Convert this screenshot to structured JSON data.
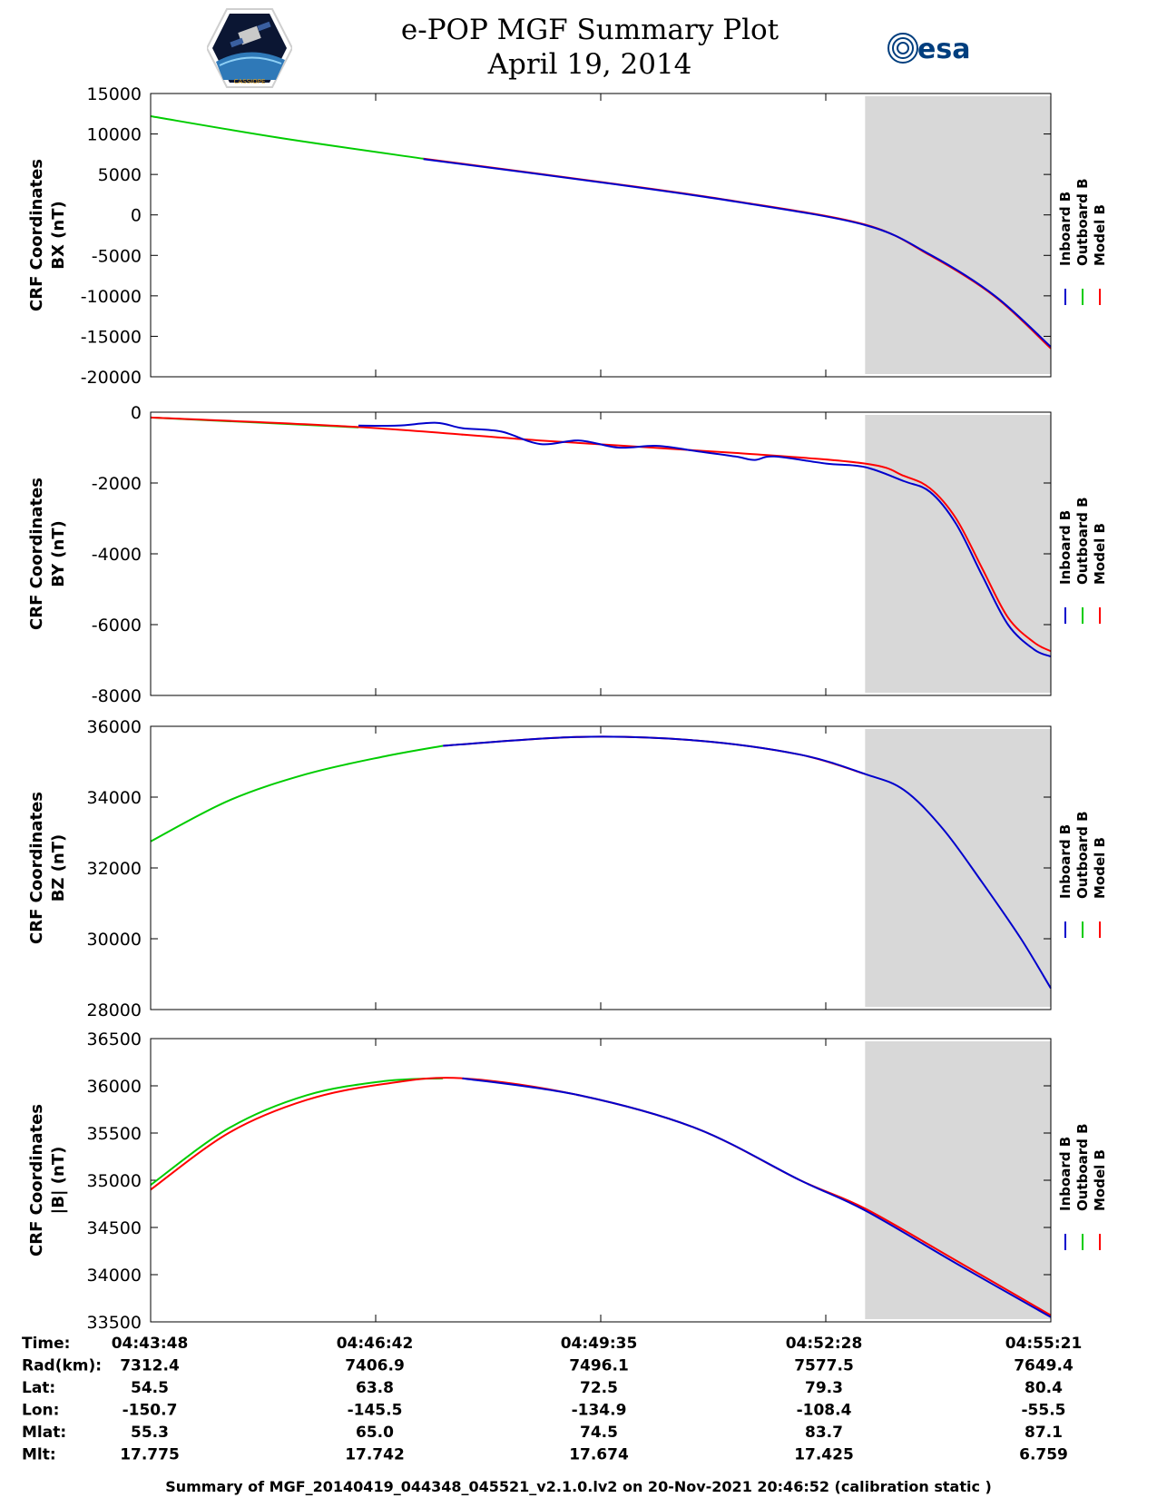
{
  "header": {
    "title_line1": "e-POP MGF Summary Plot",
    "title_line2": "April 19, 2014",
    "logo_left_text": "CASSIOPE",
    "logo_right_text": "esa"
  },
  "colors": {
    "inboard": "#0000cc",
    "outboard": "#00cc00",
    "model": "#ff0000",
    "shade": "#d8d8d8"
  },
  "legend": [
    "Inboard B",
    "Outboard B",
    "Model B"
  ],
  "chart_data": {
    "type": "line",
    "x_tick_labels": [
      "04:43:48",
      "04:46:42",
      "04:49:35",
      "04:52:28",
      "04:55:21"
    ],
    "x_range_min": [
      0,
      693
    ],
    "shaded_region_min": [
      550,
      693
    ],
    "panels": [
      {
        "ylabel1": "CRF Coordinates",
        "ylabel2": "BX (nT)",
        "ylim": [
          -20000,
          15000
        ],
        "yticks": [
          15000,
          10000,
          5000,
          0,
          -5000,
          -10000,
          -15000,
          -20000
        ],
        "series": [
          {
            "name": "Outboard B",
            "color": "#00cc00",
            "x_min": [
              0,
              100,
              210
            ],
            "y": [
              12200,
              9500,
              6950
            ]
          },
          {
            "name": "Model B",
            "color": "#ff0000",
            "x_min": [
              210,
              350,
              450,
              550,
              600,
              650,
              693
            ],
            "y": [
              6950,
              4000,
              1700,
              -1200,
              -5000,
              -10100,
              -16500
            ]
          },
          {
            "name": "Inboard B",
            "color": "#0000cc",
            "x_min": [
              210,
              350,
              450,
              550,
              600,
              650,
              693
            ],
            "y": [
              6900,
              3950,
              1650,
              -1250,
              -4900,
              -10000,
              -16300
            ]
          }
        ]
      },
      {
        "ylabel1": "CRF Coordinates",
        "ylabel2": "BY (nT)",
        "ylim": [
          -8000,
          0
        ],
        "yticks": [
          0,
          -2000,
          -4000,
          -6000,
          -8000
        ],
        "series": [
          {
            "name": "Outboard B",
            "color": "#00cc00",
            "x_min": [
              0,
              160
            ],
            "y": [
              -150,
              -430
            ]
          },
          {
            "name": "Model B",
            "color": "#ff0000",
            "x_min": [
              0,
              160,
              300,
              450,
              550,
              580,
              600,
              620,
              640,
              660,
              680,
              693
            ],
            "y": [
              -150,
              -420,
              -800,
              -1150,
              -1450,
              -1800,
              -2150,
              -3000,
              -4400,
              -5800,
              -6500,
              -6750
            ]
          },
          {
            "name": "Inboard B",
            "color": "#0000cc",
            "x_min": [
              160,
              190,
              220,
              240,
              270,
              300,
              330,
              360,
              390,
              420,
              450,
              465,
              480,
              520,
              550,
              580,
              600,
              620,
              640,
              660,
              680,
              693
            ],
            "y": [
              -380,
              -380,
              -300,
              -450,
              -550,
              -900,
              -800,
              -1000,
              -950,
              -1100,
              -1250,
              -1350,
              -1250,
              -1450,
              -1550,
              -1950,
              -2250,
              -3150,
              -4600,
              -6000,
              -6700,
              -6900
            ]
          }
        ]
      },
      {
        "ylabel1": "CRF Coordinates",
        "ylabel2": "BZ (nT)",
        "ylim": [
          28000,
          36000
        ],
        "yticks": [
          36000,
          34000,
          32000,
          30000,
          28000
        ],
        "series": [
          {
            "name": "Outboard B",
            "color": "#00cc00",
            "x_min": [
              0,
              60,
              120,
              180,
              225
            ],
            "y": [
              32750,
              33900,
              34650,
              35150,
              35450
            ]
          },
          {
            "name": "Model B",
            "color": "#ff0000",
            "x_min": [
              225,
              330,
              420,
              500,
              550
            ],
            "y": [
              35450,
              35700,
              35600,
              35200,
              34650
            ]
          },
          {
            "name": "Inboard B",
            "color": "#0000cc",
            "x_min": [
              225,
              330,
              420,
              500,
              550,
              580,
              610,
              640,
              670,
              693
            ],
            "y": [
              35450,
              35700,
              35600,
              35200,
              34650,
              34200,
              33100,
              31600,
              30000,
              28600
            ]
          }
        ]
      },
      {
        "ylabel1": "CRF Coordinates",
        "ylabel2": "|B| (nT)",
        "ylim": [
          33500,
          36500
        ],
        "yticks": [
          36500,
          36000,
          35500,
          35000,
          34500,
          34000,
          33500
        ],
        "series": [
          {
            "name": "Outboard B",
            "color": "#00cc00",
            "x_min": [
              0,
              60,
              120,
              180,
              225
            ],
            "y": [
              34950,
              35550,
              35900,
              36050,
              36080
            ]
          },
          {
            "name": "Model B",
            "color": "#ff0000",
            "x_min": [
              0,
              60,
              120,
              180,
              240,
              330,
              420,
              500,
              550,
              620,
              693
            ],
            "y": [
              34900,
              35500,
              35850,
              36020,
              36080,
              35900,
              35550,
              35000,
              34700,
              34150,
              33570
            ]
          },
          {
            "name": "Inboard B",
            "color": "#0000cc",
            "x_min": [
              240,
              330,
              420,
              500,
              550,
              620,
              693
            ],
            "y": [
              36080,
              35900,
              35550,
              35000,
              34680,
              34120,
              33550
            ]
          }
        ]
      }
    ]
  },
  "ephemeris": {
    "labels": [
      "Time:",
      "Rad(km):",
      "Lat:",
      "Lon:",
      "Mlat:",
      "Mlt:"
    ],
    "columns": [
      [
        "04:43:48",
        "7312.4",
        "54.5",
        "-150.7",
        "55.3",
        "17.775"
      ],
      [
        "04:46:42",
        "7406.9",
        "63.8",
        "-145.5",
        "65.0",
        "17.742"
      ],
      [
        "04:49:35",
        "7496.1",
        "72.5",
        "-134.9",
        "74.5",
        "17.674"
      ],
      [
        "04:52:28",
        "7577.5",
        "79.3",
        "-108.4",
        "83.7",
        "17.425"
      ],
      [
        "04:55:21",
        "7649.4",
        "80.4",
        "-55.5",
        "87.1",
        "6.759"
      ]
    ]
  },
  "footer": "Summary of MGF_20140419_044348_045521_v2.1.0.lv2 on 20-Nov-2021 20:46:52 (calibration static )"
}
